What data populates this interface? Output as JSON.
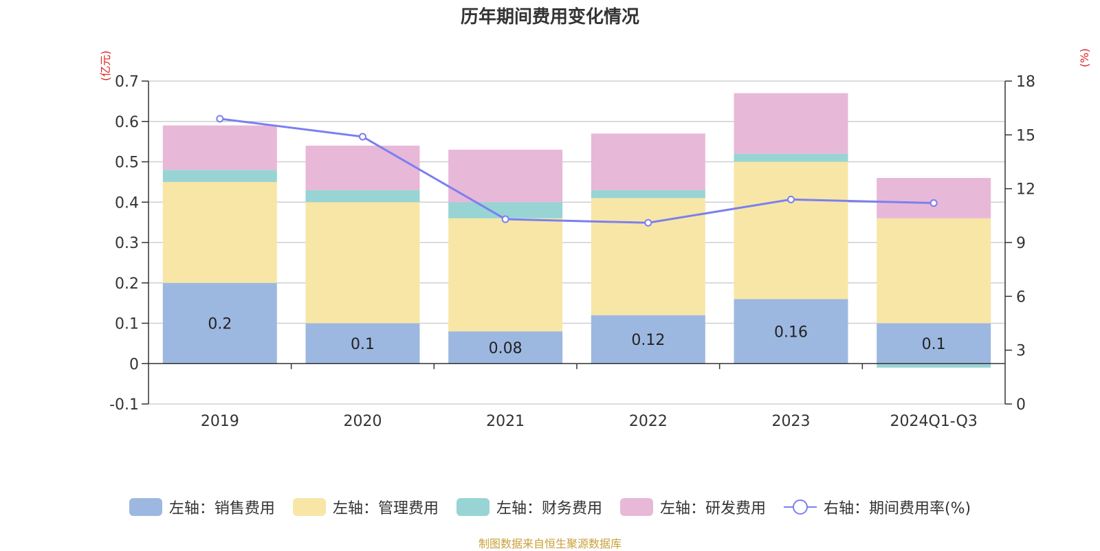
{
  "title": "历年期间费用变化情况",
  "left_axis_unit": "(亿元)",
  "right_axis_unit": "(%)",
  "source": "制图数据来自恒生聚源数据库",
  "chart_data": {
    "type": "bar",
    "stacked": true,
    "categories": [
      "2019",
      "2020",
      "2021",
      "2022",
      "2023",
      "2024Q1-Q3"
    ],
    "y_left": {
      "ticks": [
        "-0.1",
        "0",
        "0.1",
        "0.2",
        "0.3",
        "0.4",
        "0.5",
        "0.6",
        "0.7"
      ],
      "range": [
        -0.1,
        0.7
      ]
    },
    "y_right": {
      "ticks": [
        "0",
        "3",
        "6",
        "9",
        "12",
        "15",
        "18"
      ],
      "range": [
        0,
        18
      ]
    },
    "grid": true,
    "legend_position": "bottom",
    "series": [
      {
        "name": "左轴：销售费用",
        "axis": "left",
        "color": "#9db8e0",
        "values": [
          0.2,
          0.1,
          0.08,
          0.12,
          0.16,
          0.1
        ],
        "labels": [
          "0.2",
          "0.1",
          "0.08",
          "0.12",
          "0.16",
          "0.1"
        ]
      },
      {
        "name": "左轴：管理费用",
        "axis": "left",
        "color": "#f7e6a6",
        "values": [
          0.25,
          0.3,
          0.28,
          0.29,
          0.34,
          0.26
        ]
      },
      {
        "name": "左轴：财务费用",
        "axis": "left",
        "color": "#98d4d4",
        "values": [
          0.03,
          0.03,
          0.04,
          0.02,
          0.02,
          -0.01
        ]
      },
      {
        "name": "左轴：研发费用",
        "axis": "left",
        "color": "#e8b8d8",
        "values": [
          0.11,
          0.11,
          0.13,
          0.14,
          0.15,
          0.1
        ]
      }
    ],
    "line_series": {
      "name": "右轴：期间费用率(%)",
      "axis": "right",
      "color": "#7b7ff0",
      "values": [
        15.9,
        14.9,
        10.3,
        10.1,
        11.4,
        11.2
      ]
    }
  }
}
